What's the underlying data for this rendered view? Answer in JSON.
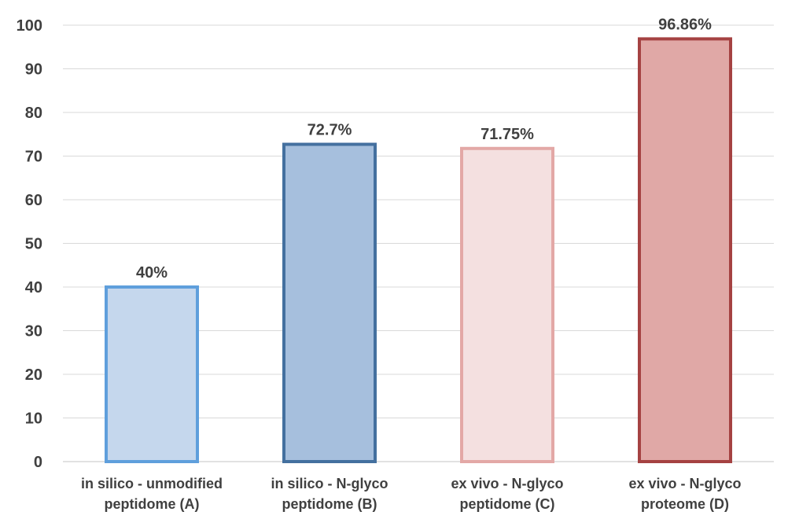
{
  "chart_data": {
    "type": "bar",
    "title": "",
    "xlabel": "",
    "ylabel": "",
    "ylim": [
      0,
      100
    ],
    "yticks": [
      0,
      10,
      20,
      30,
      40,
      50,
      60,
      70,
      80,
      90,
      100
    ],
    "grid": true,
    "categories": [
      [
        "in silico - unmodified",
        "peptidome (A)"
      ],
      [
        "in silico - N-glyco",
        "peptidome (B)"
      ],
      [
        "ex vivo - N-glyco",
        "peptidome (C)"
      ],
      [
        "ex vivo - N-glyco",
        "proteome (D)"
      ]
    ],
    "values": [
      40,
      72.7,
      71.75,
      96.86
    ],
    "data_labels": [
      "40%",
      "72.7%",
      "71.75%",
      "96.86%"
    ],
    "bar_fill_colors": [
      "#c5d7ed",
      "#a6bfdd",
      "#f4e0e0",
      "#e0a8a6"
    ],
    "bar_edge_colors": [
      "#5f9fdc",
      "#44709f",
      "#e3a8a6",
      "#a54242"
    ]
  }
}
